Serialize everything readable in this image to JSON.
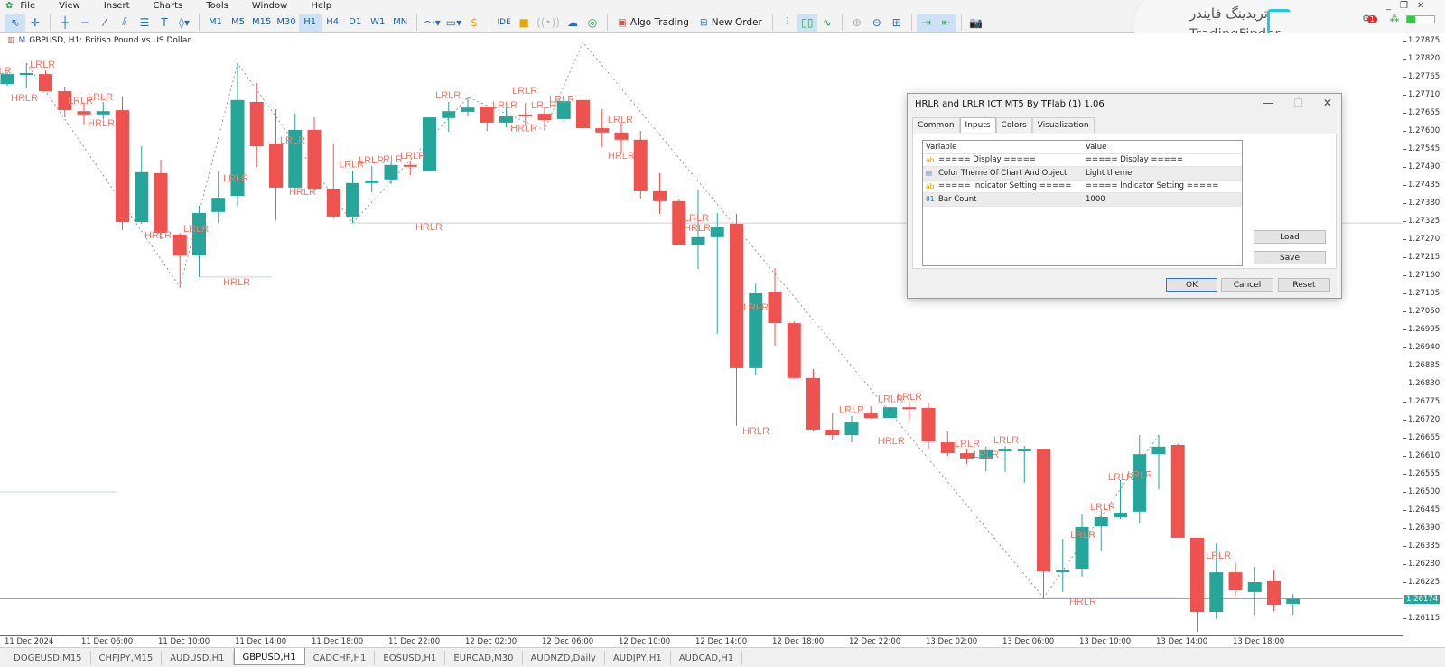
{
  "menu": [
    "File",
    "View",
    "Insert",
    "Charts",
    "Tools",
    "Window",
    "Help"
  ],
  "toolbar": {
    "timeframes": [
      "M1",
      "M5",
      "M15",
      "M30",
      "H1",
      "H4",
      "D1",
      "W1",
      "MN"
    ],
    "active_timeframe": "H1",
    "ide_label": "IDE",
    "algo_trading_label": "Algo Trading",
    "new_order_label": "New Order"
  },
  "logo": {
    "persian": "تریدینگ فایندر",
    "english": "TradingFinder"
  },
  "notifications_count": "1",
  "chart": {
    "title": "GBPUSD, H1:  British Pound vs US Dollar"
  },
  "dialog": {
    "title": "HRLR and LRLR ICT MT5 By TFlab (1) 1.06",
    "tabs": [
      "Common",
      "Inputs",
      "Colors",
      "Visualization"
    ],
    "active_tab": "Inputs",
    "columns": [
      "Variable",
      "Value"
    ],
    "rows": [
      {
        "icon": "ab",
        "variable": "===== Display =====",
        "value": "===== Display ====="
      },
      {
        "icon": "enum",
        "variable": "Color Theme Of Chart And Object",
        "value": "Light theme"
      },
      {
        "icon": "ab",
        "variable": "===== Indicator Setting =====",
        "value": "===== Indicator Setting ====="
      },
      {
        "icon": "01",
        "variable": "Bar Count",
        "value": "1000"
      }
    ],
    "load_label": "Load",
    "save_label": "Save",
    "ok_label": "OK",
    "cancel_label": "Cancel",
    "reset_label": "Reset"
  },
  "tabs": [
    "DOGEUSD,M15",
    "CHFJPY,M15",
    "AUDUSD,H1",
    "GBPUSD,H1",
    "CADCHF,H1",
    "EOSUSD,H1",
    "EURCAD,M30",
    "AUDNZD,Daily",
    "AUDJPY,H1",
    "AUDCAD,H1"
  ],
  "active_tab": "GBPUSD,H1",
  "chart_data": {
    "type": "candlestick",
    "symbol": "GBPUSD",
    "timeframe": "H1",
    "ylim": [
      1.26074,
      1.27875
    ],
    "current_price": "1.26174",
    "colors": {
      "bull": "#26a69a",
      "bear": "#ef5350",
      "label": "#ef7b6b",
      "zigzag": "#9a9a9a",
      "level": "#c9d3e0",
      "current": "#26a69a"
    },
    "price_ticks": [
      "1.27875",
      "1.27820",
      "1.27765",
      "1.27710",
      "1.27655",
      "1.27600",
      "1.27545",
      "1.27490",
      "1.27435",
      "1.27380",
      "1.27325",
      "1.27270",
      "1.27215",
      "1.27160",
      "1.27105",
      "1.27050",
      "1.26995",
      "1.26940",
      "1.26885",
      "1.26830",
      "1.26775",
      "1.26720",
      "1.26665",
      "1.26610",
      "1.26555",
      "1.26500",
      "1.26445",
      "1.26390",
      "1.26335",
      "1.26280",
      "1.26225",
      "1.26115"
    ],
    "time_labels": [
      {
        "bar": 0,
        "text": "11 Dec 2024"
      },
      {
        "bar": 4,
        "text": "11 Dec 06:00"
      },
      {
        "bar": 8,
        "text": "11 Dec 10:00"
      },
      {
        "bar": 12,
        "text": "11 Dec 14:00"
      },
      {
        "bar": 16,
        "text": "11 Dec 18:00"
      },
      {
        "bar": 20,
        "text": "11 Dec 22:00"
      },
      {
        "bar": 24,
        "text": "12 Dec 02:00"
      },
      {
        "bar": 28,
        "text": "12 Dec 06:00"
      },
      {
        "bar": 32,
        "text": "12 Dec 10:00"
      },
      {
        "bar": 36,
        "text": "12 Dec 14:00"
      },
      {
        "bar": 40,
        "text": "12 Dec 18:00"
      },
      {
        "bar": 44,
        "text": "12 Dec 22:00"
      },
      {
        "bar": 48,
        "text": "13 Dec 02:00"
      },
      {
        "bar": 52,
        "text": "13 Dec 06:00"
      },
      {
        "bar": 56,
        "text": "13 Dec 10:00"
      },
      {
        "bar": 60,
        "text": "13 Dec 14:00"
      },
      {
        "bar": 64,
        "text": "13 Dec 18:00"
      }
    ],
    "candles_ohlc": [
      [
        1.27743,
        1.27779,
        1.27737,
        1.27773
      ],
      [
        1.27773,
        1.27806,
        1.27732,
        1.27776
      ],
      [
        1.27773,
        1.27784,
        1.27721,
        1.27721
      ],
      [
        1.27721,
        1.27735,
        1.27641,
        1.27663
      ],
      [
        1.2766,
        1.27682,
        1.27619,
        1.2765
      ],
      [
        1.2765,
        1.27688,
        1.27636,
        1.2766
      ],
      [
        1.27663,
        1.27705,
        1.27298,
        1.27322
      ],
      [
        1.27322,
        1.27553,
        1.27317,
        1.27474
      ],
      [
        1.27471,
        1.27512,
        1.2727,
        1.27289
      ],
      [
        1.27284,
        1.27289,
        1.27124,
        1.2722
      ],
      [
        1.2722,
        1.27372,
        1.27155,
        1.2735
      ],
      [
        1.27353,
        1.27476,
        1.27319,
        1.27396
      ],
      [
        1.27402,
        1.27806,
        1.27369,
        1.27694
      ],
      [
        1.27688,
        1.27746,
        1.2749,
        1.27553
      ],
      [
        1.27562,
        1.27666,
        1.27328,
        1.27427
      ],
      [
        1.27427,
        1.27652,
        1.27408,
        1.27603
      ],
      [
        1.27603,
        1.27641,
        1.27421,
        1.27424
      ],
      [
        1.27424,
        1.27562,
        1.27333,
        1.27339
      ],
      [
        1.27339,
        1.27479,
        1.27319,
        1.27441
      ],
      [
        1.27441,
        1.27493,
        1.27413,
        1.27449
      ],
      [
        1.27452,
        1.27504,
        1.27438,
        1.27496
      ],
      [
        1.27496,
        1.27509,
        1.27465,
        1.27493
      ],
      [
        1.27476,
        1.27641,
        1.27476,
        1.27641
      ],
      [
        1.27639,
        1.27688,
        1.27597,
        1.2766
      ],
      [
        1.27658,
        1.27702,
        1.27644,
        1.27671
      ],
      [
        1.27674,
        1.27674,
        1.276,
        1.27625
      ],
      [
        1.27625,
        1.27688,
        1.27611,
        1.27644
      ],
      [
        1.2765,
        1.27685,
        1.27619,
        1.27647
      ],
      [
        1.27652,
        1.27674,
        1.27603,
        1.27633
      ],
      [
        1.27636,
        1.27702,
        1.27625,
        1.27691
      ],
      [
        1.27694,
        1.2787,
        1.27606,
        1.27608
      ],
      [
        1.27608,
        1.27666,
        1.27551,
        1.27595
      ],
      [
        1.27595,
        1.27625,
        1.27531,
        1.27573
      ],
      [
        1.27573,
        1.276,
        1.27394,
        1.27416
      ],
      [
        1.27416,
        1.27471,
        1.27347,
        1.27386
      ],
      [
        1.27386,
        1.27391,
        1.27251,
        1.27253
      ],
      [
        1.27251,
        1.27421,
        1.27179,
        1.27276
      ],
      [
        1.27276,
        1.2735,
        1.26981,
        1.27308
      ],
      [
        1.27317,
        1.27347,
        1.26701,
        1.26877
      ],
      [
        1.26877,
        1.27135,
        1.26857,
        1.27105
      ],
      [
        1.27108,
        1.27182,
        1.26945,
        1.27014
      ],
      [
        1.27014,
        1.2702,
        1.26844,
        1.26847
      ],
      [
        1.26847,
        1.26874,
        1.26687,
        1.2669
      ],
      [
        1.2669,
        1.26739,
        1.26657,
        1.26673
      ],
      [
        1.26673,
        1.26731,
        1.26651,
        1.26714
      ],
      [
        1.26739,
        1.26761,
        1.26723,
        1.26725
      ],
      [
        1.26725,
        1.26775,
        1.26714,
        1.26758
      ],
      [
        1.26758,
        1.26772,
        1.26717,
        1.26753
      ],
      [
        1.26756,
        1.26772,
        1.26632,
        1.26654
      ],
      [
        1.26651,
        1.26687,
        1.2661,
        1.26618
      ],
      [
        1.26618,
        1.26632,
        1.26585,
        1.26602
      ],
      [
        1.26602,
        1.26638,
        1.26563,
        1.26627
      ],
      [
        1.26627,
        1.2664,
        1.26561,
        1.26629
      ],
      [
        1.26627,
        1.2664,
        1.26528,
        1.26629
      ],
      [
        1.26632,
        1.26632,
        1.26178,
        1.26258
      ],
      [
        1.26255,
        1.26357,
        1.26195,
        1.26263
      ],
      [
        1.26266,
        1.26431,
        1.26242,
        1.26393
      ],
      [
        1.26395,
        1.26445,
        1.2632,
        1.26423
      ],
      [
        1.26423,
        1.26536,
        1.26418,
        1.26437
      ],
      [
        1.2644,
        1.26673,
        1.26404,
        1.26615
      ],
      [
        1.26615,
        1.26673,
        1.26508,
        1.26638
      ],
      [
        1.26643,
        1.26646,
        1.2636,
        1.2636
      ],
      [
        1.2636,
        1.2636,
        1.26074,
        1.26134
      ],
      [
        1.26134,
        1.26343,
        1.26112,
        1.26255
      ],
      [
        1.26255,
        1.26285,
        1.26184,
        1.262
      ],
      [
        1.26195,
        1.26272,
        1.26126,
        1.26225
      ],
      [
        1.26228,
        1.26263,
        1.26137,
        1.26156
      ],
      [
        1.26159,
        1.26189,
        1.26126,
        1.26174
      ]
    ],
    "zigzag": [
      [
        1,
        1.27806
      ],
      [
        9,
        1.27124
      ],
      [
        12,
        1.27806
      ],
      [
        18,
        1.27319
      ],
      [
        24,
        1.27702
      ],
      [
        28,
        1.27603
      ],
      [
        30,
        1.2787
      ],
      [
        54,
        1.26178
      ],
      [
        60,
        1.26673
      ]
    ],
    "levels": [
      {
        "from": 17.9,
        "to": "end",
        "price": 1.27319
      },
      {
        "from": 10,
        "to": 13.8,
        "price": 1.27155
      },
      {
        "from": -0.4,
        "to": 5.7,
        "price": 1.265
      },
      {
        "from": 54,
        "to": 61,
        "price": 1.26178
      }
    ],
    "labels": [
      {
        "text": "LRLR",
        "bar": -1.1,
        "price": 1.27781
      },
      {
        "text": "LRLR",
        "bar": 1.18,
        "price": 1.27801
      },
      {
        "text": "HRLR",
        "bar": 0.19,
        "price": 1.27699
      },
      {
        "text": "LRLR",
        "bar": 3.15,
        "price": 1.27691
      },
      {
        "text": "LRLR",
        "bar": 4.19,
        "price": 1.27702
      },
      {
        "text": "HRLR",
        "bar": 4.19,
        "price": 1.27622
      },
      {
        "text": "HRLR",
        "bar": 7.15,
        "price": 1.27281
      },
      {
        "text": "LRLR",
        "bar": 9.18,
        "price": 1.273
      },
      {
        "text": "HRLR",
        "bar": 11.25,
        "price": 1.27138
      },
      {
        "text": "LRLR",
        "bar": 11.25,
        "price": 1.27454
      },
      {
        "text": "LRLR",
        "bar": 14.21,
        "price": 1.2757
      },
      {
        "text": "HRLR",
        "bar": 14.68,
        "price": 1.27413
      },
      {
        "text": "LRLR",
        "bar": 17.27,
        "price": 1.27496
      },
      {
        "text": "LRLR",
        "bar": 18.31,
        "price": 1.27509
      },
      {
        "text": "LRLR",
        "bar": 19.29,
        "price": 1.27512
      },
      {
        "text": "LRLR",
        "bar": 20.47,
        "price": 1.27523
      },
      {
        "text": "HRLR",
        "bar": 21.27,
        "price": 1.27306
      },
      {
        "text": "LRLR",
        "bar": 22.31,
        "price": 1.27707
      },
      {
        "text": "LRLR",
        "bar": 26.31,
        "price": 1.27721
      },
      {
        "text": "LRLR",
        "bar": 25.27,
        "price": 1.27677
      },
      {
        "text": "HRLR",
        "bar": 26.21,
        "price": 1.27606
      },
      {
        "text": "LRLR",
        "bar": 27.29,
        "price": 1.27677
      },
      {
        "text": "LRLR",
        "bar": 28.24,
        "price": 1.27694
      },
      {
        "text": "LRLR",
        "bar": 31.29,
        "price": 1.27633
      },
      {
        "text": "HRLR",
        "bar": 31.29,
        "price": 1.27523
      },
      {
        "text": "LRLR",
        "bar": 35.25,
        "price": 1.27333
      },
      {
        "text": "HRLR",
        "bar": 35.25,
        "price": 1.27303
      },
      {
        "text": "LRLR",
        "bar": 38.35,
        "price": 1.27061
      },
      {
        "text": "HRLR",
        "bar": 38.31,
        "price": 1.26684
      },
      {
        "text": "LRLR",
        "bar": 43.34,
        "price": 1.26748
      },
      {
        "text": "LRLR",
        "bar": 45.36,
        "price": 1.26781
      },
      {
        "text": "LRLR",
        "bar": 46.35,
        "price": 1.26789
      },
      {
        "text": "HRLR",
        "bar": 45.36,
        "price": 1.26654
      },
      {
        "text": "LRLR",
        "bar": 49.36,
        "price": 1.26646
      },
      {
        "text": "LRLR",
        "bar": 50.35,
        "price": 1.26613
      },
      {
        "text": "LRLR",
        "bar": 51.39,
        "price": 1.26657
      },
      {
        "text": "HRLR",
        "bar": 55.34,
        "price": 1.26164
      },
      {
        "text": "LRLR",
        "bar": 55.39,
        "price": 1.26368
      },
      {
        "text": "LRLR",
        "bar": 56.42,
        "price": 1.26453
      },
      {
        "text": "LRLR",
        "bar": 57.36,
        "price": 1.26544
      },
      {
        "text": "LRLR",
        "bar": 58.35,
        "price": 1.2655
      },
      {
        "text": "LRLR",
        "bar": 62.45,
        "price": 1.26305
      }
    ]
  }
}
